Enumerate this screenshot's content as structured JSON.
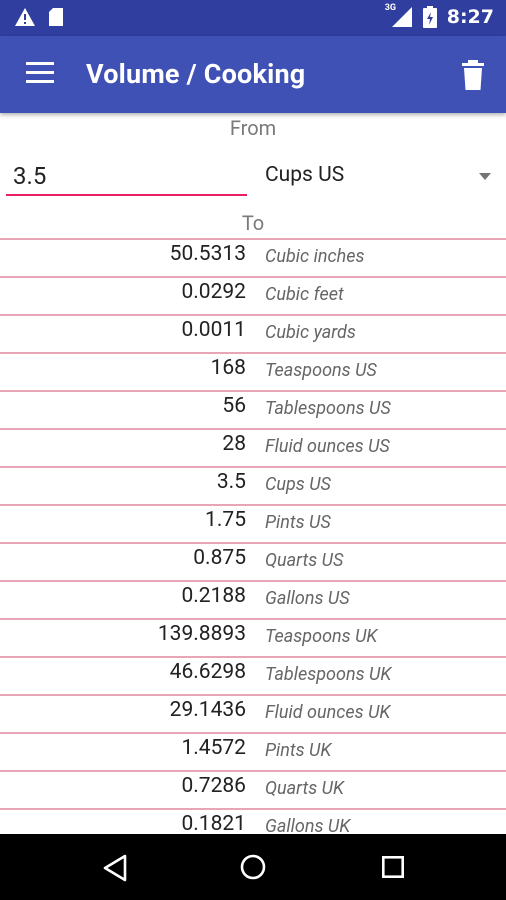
{
  "status_bar": {
    "time": "8:27",
    "network_tag": "3G",
    "icons": [
      "warning-icon",
      "sd-card-icon",
      "signal-icon",
      "battery-icon"
    ]
  },
  "app_bar": {
    "title": "Volume / Cooking",
    "icons": [
      "menu-icon",
      "trash-icon"
    ]
  },
  "converter": {
    "from_label": "From",
    "input_value": "3.5",
    "from_unit": "Cups US",
    "to_label": "To"
  },
  "results": [
    {
      "value": "50.5313",
      "unit": "Cubic inches"
    },
    {
      "value": "0.0292",
      "unit": "Cubic feet"
    },
    {
      "value": "0.0011",
      "unit": "Cubic yards"
    },
    {
      "value": "168",
      "unit": "Teaspoons US"
    },
    {
      "value": "56",
      "unit": "Tablespoons US"
    },
    {
      "value": "28",
      "unit": "Fluid ounces US"
    },
    {
      "value": "3.5",
      "unit": "Cups US"
    },
    {
      "value": "1.75",
      "unit": "Pints US"
    },
    {
      "value": "0.875",
      "unit": "Quarts US"
    },
    {
      "value": "0.2188",
      "unit": "Gallons US"
    },
    {
      "value": "139.8893",
      "unit": "Teaspoons UK"
    },
    {
      "value": "46.6298",
      "unit": "Tablespoons UK"
    },
    {
      "value": "29.1436",
      "unit": "Fluid ounces UK"
    },
    {
      "value": "1.4572",
      "unit": "Pints UK"
    },
    {
      "value": "0.7286",
      "unit": "Quarts UK"
    },
    {
      "value": "0.1821",
      "unit": "Gallons UK"
    }
  ],
  "nav_bar": {
    "icons": [
      "back-icon",
      "home-icon",
      "recents-icon"
    ]
  },
  "colors": {
    "status_bar": "#303f9f",
    "app_bar": "#3f51b5",
    "accent": "#e91e63",
    "divider": "#e8a5b8"
  }
}
